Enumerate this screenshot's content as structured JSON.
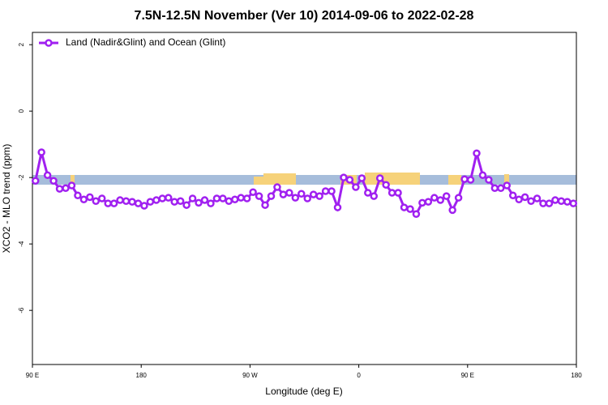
{
  "chart_data": {
    "type": "line",
    "title": "7.5N-12.5N November (Ver 10)   2014-09-06 to 2022-02-28",
    "x_label": "Longitude (deg E)",
    "y_label": "XCO2 - MLO trend (ppm)",
    "xlim": [
      90,
      540
    ],
    "xticks": [
      {
        "value": 90,
        "label": "90 E"
      },
      {
        "value": 180,
        "label": "180"
      },
      {
        "value": 270,
        "label": "90 W"
      },
      {
        "value": 360,
        "label": "0"
      },
      {
        "value": 450,
        "label": "90 E"
      },
      {
        "value": 540,
        "label": "180"
      }
    ],
    "ylim": [
      -7.63,
      2.37
    ],
    "yticks": [
      -6,
      -4,
      -2,
      0,
      2
    ],
    "legend": "topleft",
    "x": [
      92.5,
      97.5,
      102.5,
      107.5,
      112.5,
      117.5,
      122.5,
      127.5,
      132.5,
      137.5,
      142.5,
      147.5,
      152.5,
      157.5,
      162.5,
      167.5,
      172.5,
      177.5,
      182.5,
      187.5,
      192.5,
      197.5,
      202.5,
      207.5,
      212.5,
      217.5,
      222.5,
      227.5,
      232.5,
      237.5,
      242.5,
      247.5,
      252.5,
      257.5,
      262.5,
      267.5,
      272.5,
      277.5,
      282.5,
      287.5,
      292.5,
      297.5,
      302.5,
      307.5,
      312.5,
      317.5,
      322.5,
      327.5,
      332.5,
      337.5,
      342.5,
      347.5,
      352.5,
      357.5,
      362.5,
      367.5,
      372.5,
      377.5,
      382.5,
      387.5,
      392.5,
      397.5,
      402.5,
      407.5,
      412.5,
      417.5,
      422.5,
      427.5,
      432.5,
      437.5,
      442.5,
      447.5,
      452.5,
      457.5,
      462.5,
      467.5,
      472.5,
      477.5,
      482.5,
      487.5,
      492.5,
      497.5,
      502.5,
      507.5,
      512.5,
      517.5,
      522.5,
      527.5,
      532.5,
      537.5
    ],
    "series": [
      {
        "name": "Land (Nadir&Glint) and Ocean (Glint)",
        "color": "#a020f0",
        "values": [
          -2.1,
          -1.24,
          -1.93,
          -2.1,
          -2.34,
          -2.32,
          -2.24,
          -2.54,
          -2.66,
          -2.59,
          -2.71,
          -2.63,
          -2.78,
          -2.78,
          -2.68,
          -2.71,
          -2.73,
          -2.78,
          -2.85,
          -2.73,
          -2.68,
          -2.63,
          -2.61,
          -2.73,
          -2.71,
          -2.83,
          -2.63,
          -2.76,
          -2.68,
          -2.78,
          -2.63,
          -2.63,
          -2.71,
          -2.66,
          -2.61,
          -2.63,
          -2.44,
          -2.56,
          -2.83,
          -2.56,
          -2.29,
          -2.51,
          -2.46,
          -2.61,
          -2.49,
          -2.63,
          -2.51,
          -2.56,
          -2.41,
          -2.41,
          -2.9,
          -2.0,
          -2.07,
          -2.29,
          -2.02,
          -2.46,
          -2.56,
          -2.02,
          -2.22,
          -2.46,
          -2.46,
          -2.9,
          -2.95,
          -3.1,
          -2.76,
          -2.73,
          -2.61,
          -2.68,
          -2.56,
          -2.98,
          -2.61,
          -2.05,
          -2.07,
          -1.27,
          -1.93,
          -2.07,
          -2.32,
          -2.32,
          -2.24,
          -2.54,
          -2.66,
          -2.59,
          -2.71,
          -2.63,
          -2.78,
          -2.78,
          -2.68,
          -2.71,
          -2.73,
          -2.78
        ]
      }
    ]
  }
}
